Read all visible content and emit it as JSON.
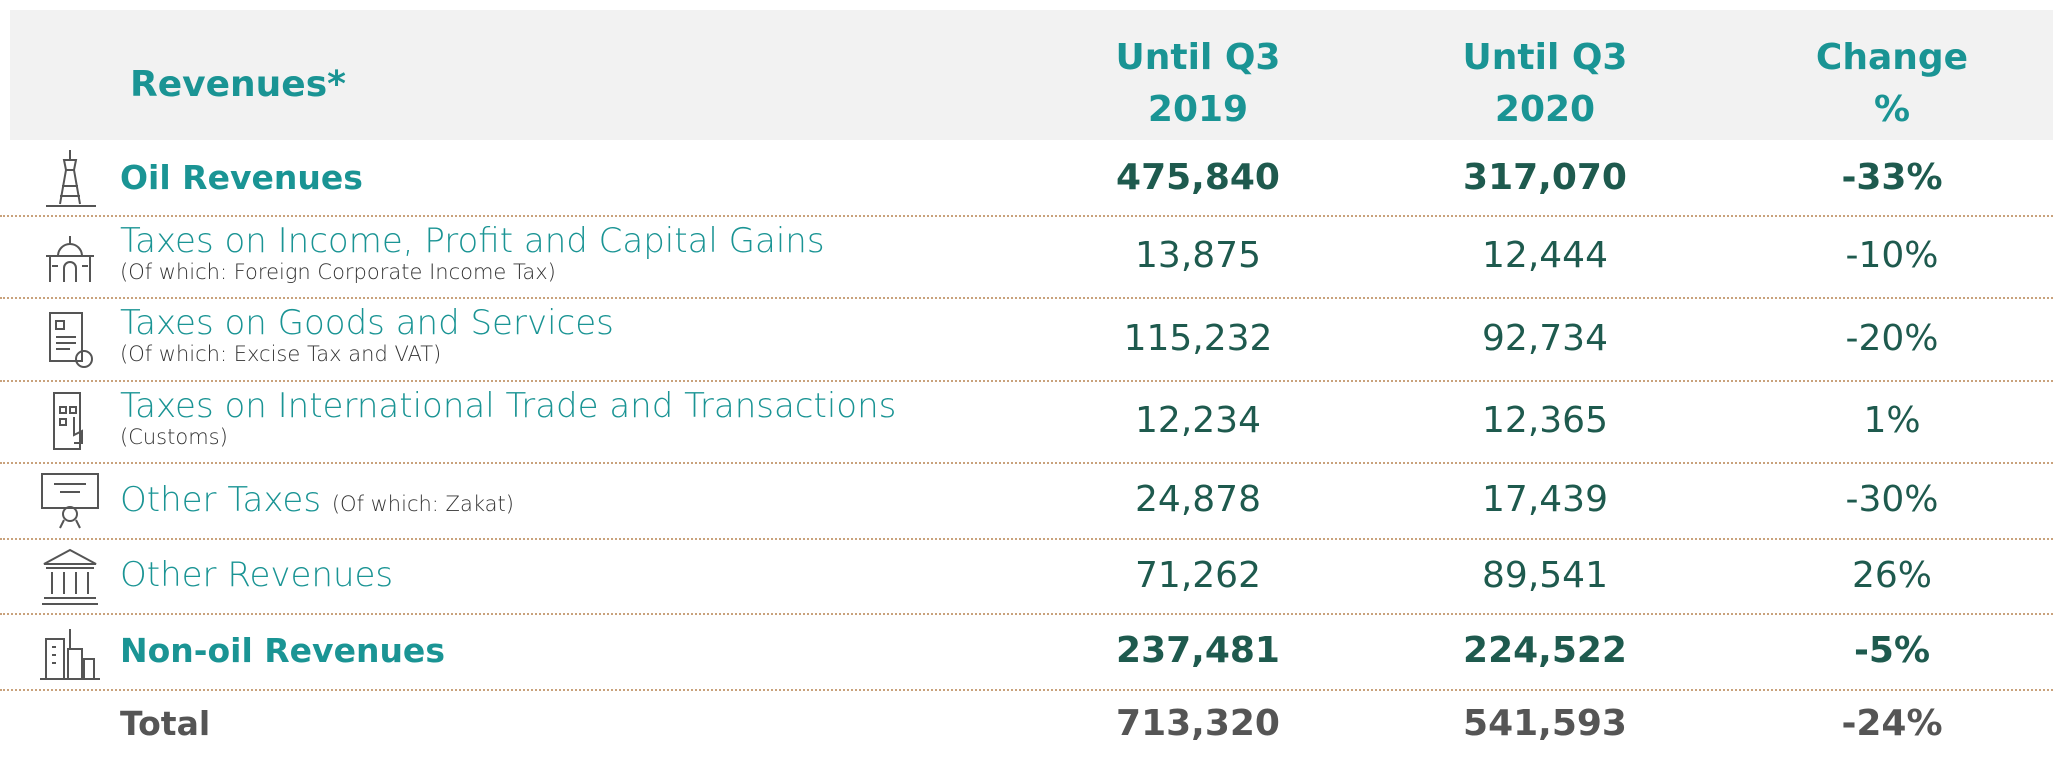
{
  "header": {
    "title": "Revenues*",
    "columns": [
      [
        "Until Q3",
        "2019"
      ],
      [
        "Until Q3",
        "2020"
      ],
      [
        "Change",
        "%"
      ]
    ]
  },
  "rows": [
    {
      "label": "Oil Revenues",
      "values": [
        "475,840",
        "317,070",
        "-33%"
      ]
    },
    {
      "label": "Taxes on Income, Profit and Capital Gains",
      "note": "(Of which: Foreign Corporate Income Tax)",
      "values": [
        "13,875",
        "12,444",
        "-10%"
      ]
    },
    {
      "label": "Taxes on Goods and Services",
      "note": "(Of which: Excise Tax and VAT)",
      "values": [
        "115,232",
        "92,734",
        "-20%"
      ]
    },
    {
      "label": "Taxes on International Trade and Transactions",
      "note": "(Customs)",
      "values": [
        "12,234",
        "12,365",
        "1%"
      ]
    },
    {
      "label": "Other Taxes",
      "note": "(Of which: Zakat)",
      "values": [
        "24,878",
        "17,439",
        "-30%"
      ]
    },
    {
      "label": "Other Revenues",
      "values": [
        "71,262",
        "89,541",
        "26%"
      ]
    },
    {
      "label": "Non-oil Revenues",
      "values": [
        "237,481",
        "224,522",
        "-5%"
      ]
    },
    {
      "label": "Total",
      "values": [
        "713,320",
        "541,593",
        "-24%"
      ]
    }
  ]
}
